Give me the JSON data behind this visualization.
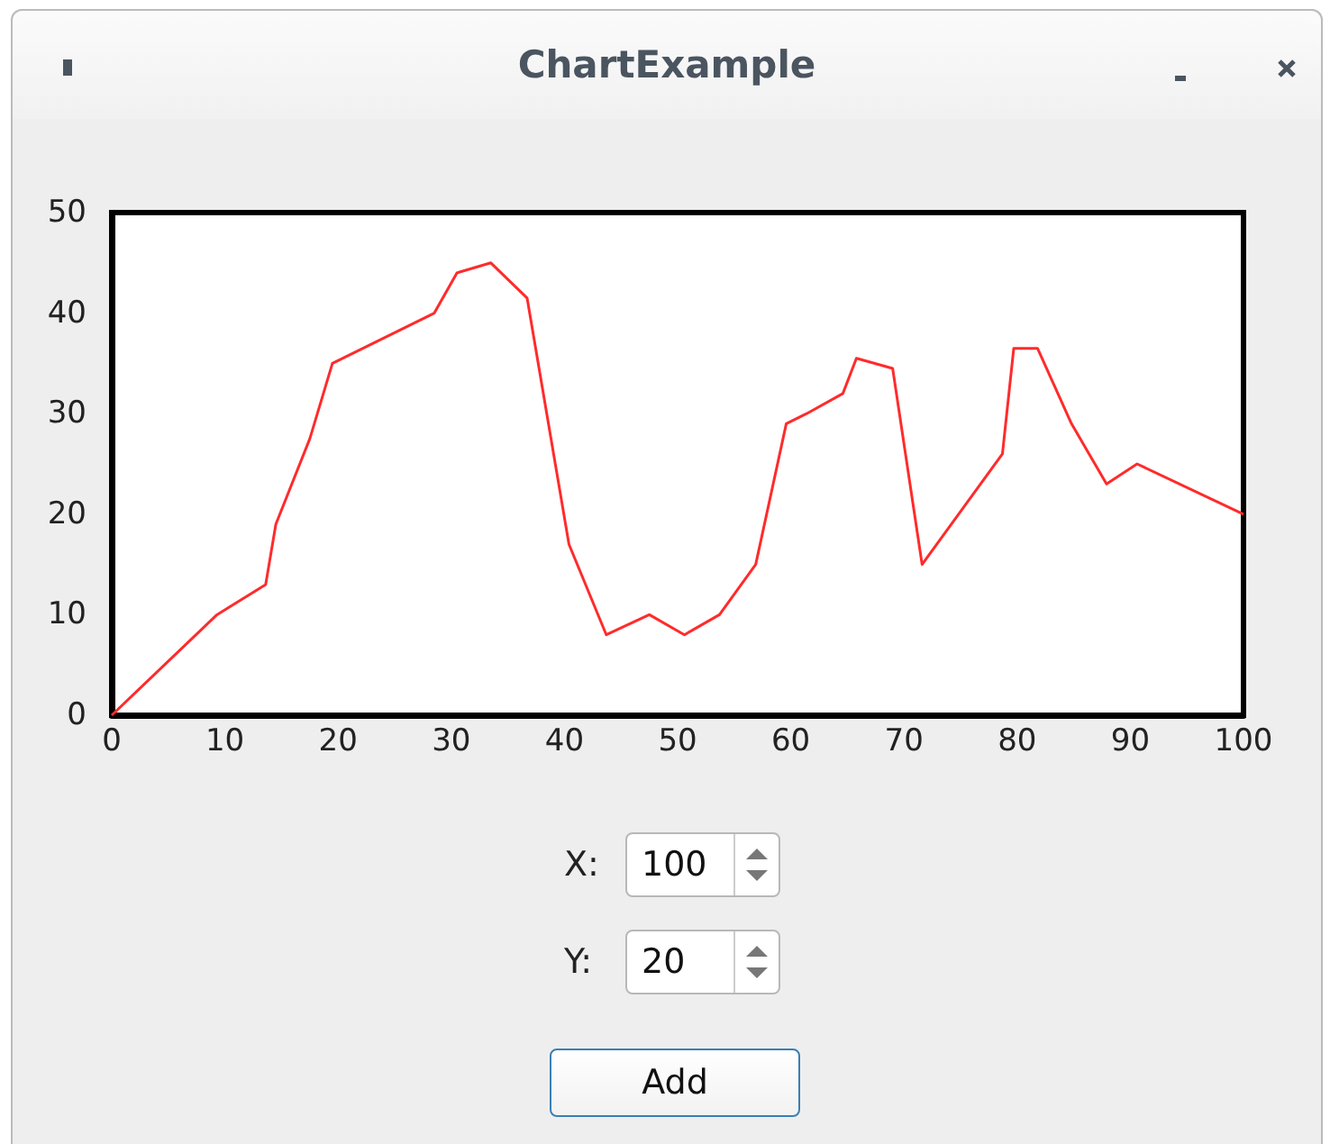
{
  "chart_data": {
    "type": "line",
    "title": "ChartExample",
    "x": [
      0,
      9.3,
      13.6,
      14.5,
      17.5,
      19.5,
      28.5,
      30.5,
      33.5,
      36.7,
      40.4,
      43.7,
      47.5,
      50.6,
      53.7,
      56.9,
      59.6,
      61.4,
      64.6,
      65.8,
      69,
      71.6,
      78.7,
      79.7,
      81.8,
      84.8,
      87.9,
      90.6,
      100
    ],
    "values": [
      0,
      10,
      13,
      19,
      27.5,
      35,
      40,
      44,
      45,
      41.5,
      17,
      8,
      10,
      8,
      10,
      15,
      29,
      30,
      32,
      35.5,
      34.5,
      15,
      26,
      36.5,
      36.5,
      29,
      23,
      25,
      20
    ],
    "color": "#ff2b2b",
    "xlim": [
      0,
      100
    ],
    "xticks": [
      0,
      10,
      20,
      30,
      40,
      50,
      60,
      70,
      80,
      90,
      100
    ],
    "ylim": [
      0,
      50
    ],
    "yticks": [
      0,
      10,
      20,
      30,
      40,
      50
    ],
    "grid": false,
    "marker": "none",
    "line_style": "solid",
    "annotations": [
      "X:",
      "100",
      "Y:",
      "20",
      "Add"
    ]
  }
}
